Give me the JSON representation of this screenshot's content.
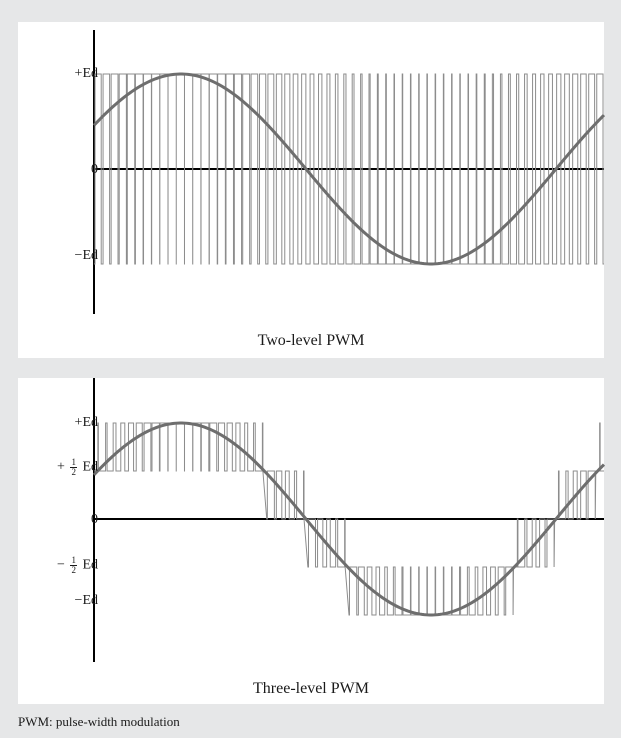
{
  "figure": {
    "footnote": "PWM: pulse-width modulation",
    "colors": {
      "background": "#e6e7e8",
      "panel": "#ffffff",
      "axis": "#000000",
      "pwm": "#8c8c8c",
      "sine": "#6e6e6e"
    }
  },
  "two_level": {
    "caption": "Two-level PWM",
    "y_ticks": {
      "pos": "+Ed",
      "zero": "0",
      "neg": "−Ed"
    }
  },
  "three_level": {
    "caption": "Three-level PWM",
    "y_ticks": {
      "pos": "+Ed",
      "half_pos_prefix": "+",
      "half_neg_prefix": "−",
      "half_num": "1",
      "half_den": "2",
      "half_suffix": "Ed",
      "zero": "0",
      "neg": "−Ed"
    }
  }
}
